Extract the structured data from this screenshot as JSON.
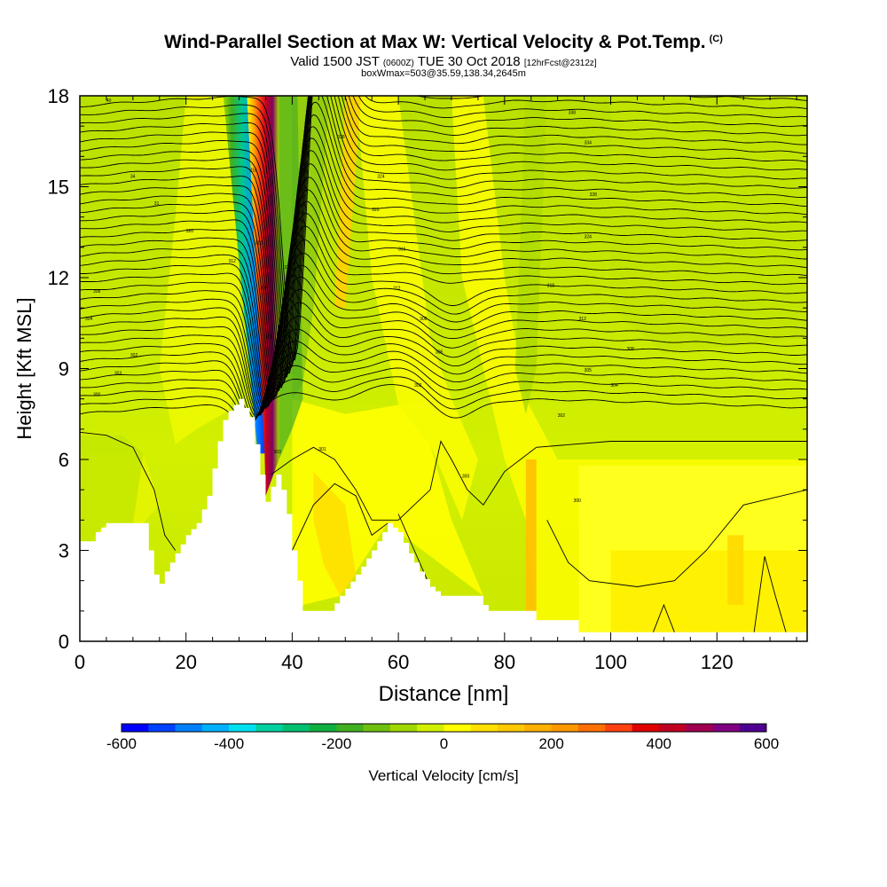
{
  "header": {
    "title": "Wind-Parallel Section at Max W: Vertical Velocity & Pot.Temp.",
    "copyright": "(C)",
    "valid_prefix": "Valid 1500 JST",
    "valid_utc": "(0600Z)",
    "valid_date": "TUE 30 Oct 2018",
    "forecast": "[12hrFcst@2312z]",
    "box_info": "boxWmax=503@35.59,138.34,2645m"
  },
  "chart_data": {
    "type": "heatmap",
    "title": "Wind-Parallel Section at Max W: Vertical Velocity & Pot.Temp.",
    "xlabel": "Distance [nm]",
    "ylabel": "Height [Kft MSL]",
    "xlim": [
      0,
      137
    ],
    "ylim": [
      0,
      18
    ],
    "x_ticks": [
      0,
      20,
      40,
      60,
      80,
      100,
      120
    ],
    "y_ticks": [
      0,
      3,
      6,
      9,
      12,
      15,
      18
    ],
    "colorbar": {
      "label": "Vertical Velocity [cm/s]",
      "ticks": [
        -600,
        -400,
        -200,
        0,
        200,
        400,
        600
      ],
      "colors": [
        "#0000ff",
        "#0040ff",
        "#0080ff",
        "#00b0ff",
        "#00e0f0",
        "#00d0a0",
        "#00c070",
        "#10b040",
        "#40b020",
        "#70c010",
        "#a0d800",
        "#d0f000",
        "#ffff00",
        "#ffe000",
        "#ffc800",
        "#ffb000",
        "#ff9800",
        "#ff7000",
        "#ff4010",
        "#e00000",
        "#c00020",
        "#a00050",
        "#800080",
        "#500090"
      ]
    },
    "terrain_kft": [
      [
        0,
        3.3
      ],
      [
        2,
        3.3
      ],
      [
        3,
        3.6
      ],
      [
        5,
        3.9
      ],
      [
        12,
        3.9
      ],
      [
        13,
        3.0
      ],
      [
        14,
        2.2
      ],
      [
        15,
        1.9
      ],
      [
        16,
        2.3
      ],
      [
        18,
        2.9
      ],
      [
        20,
        3.5
      ],
      [
        22,
        3.9
      ],
      [
        24,
        4.8
      ],
      [
        25,
        5.7
      ],
      [
        26,
        6.6
      ],
      [
        27,
        7.3
      ],
      [
        28,
        7.6
      ],
      [
        30,
        8.0
      ],
      [
        31,
        7.7
      ],
      [
        32,
        7.4
      ],
      [
        33,
        6.5
      ],
      [
        34,
        5.5
      ],
      [
        35,
        4.6
      ],
      [
        36,
        5.1
      ],
      [
        37,
        5.5
      ],
      [
        38,
        5.0
      ],
      [
        39,
        4.2
      ],
      [
        40,
        3.0
      ],
      [
        41,
        2.0
      ],
      [
        42,
        1.0
      ],
      [
        47,
        1.0
      ],
      [
        49,
        1.5
      ],
      [
        52,
        2.2
      ],
      [
        55,
        3.0
      ],
      [
        57,
        3.6
      ],
      [
        58,
        3.9
      ],
      [
        60,
        3.6
      ],
      [
        62,
        2.9
      ],
      [
        64,
        2.3
      ],
      [
        66,
        1.8
      ],
      [
        68,
        1.5
      ],
      [
        75,
        1.5
      ],
      [
        76,
        1.2
      ],
      [
        77,
        1.0
      ],
      [
        85,
        1.0
      ],
      [
        86,
        0.7
      ],
      [
        93,
        0.7
      ],
      [
        94,
        0.3
      ],
      [
        137,
        0.3
      ]
    ],
    "isentrope_labels": [
      {
        "x": 5,
        "y": 17.8,
        "text": "40"
      },
      {
        "x": 9.5,
        "y": 15.3,
        "text": "34"
      },
      {
        "x": 14,
        "y": 14.4,
        "text": "31"
      },
      {
        "x": 20,
        "y": 13.5,
        "text": "320"
      },
      {
        "x": 2.5,
        "y": 11.5,
        "text": "308"
      },
      {
        "x": 1,
        "y": 10.6,
        "text": "304"
      },
      {
        "x": 9.5,
        "y": 9.4,
        "text": "302"
      },
      {
        "x": 6.5,
        "y": 8.8,
        "text": "303"
      },
      {
        "x": 2.5,
        "y": 8.1,
        "text": "300"
      },
      {
        "x": 32,
        "y": 15.5,
        "text": "316"
      },
      {
        "x": 28,
        "y": 12.5,
        "text": "312"
      },
      {
        "x": 33,
        "y": 13.1,
        "text": "310"
      },
      {
        "x": 34,
        "y": 11.6,
        "text": "308"
      },
      {
        "x": 35,
        "y": 10.0,
        "text": "305"
      },
      {
        "x": 38.5,
        "y": 12.3,
        "text": "316"
      },
      {
        "x": 38,
        "y": 11.0,
        "text": "312"
      },
      {
        "x": 37,
        "y": 9.5,
        "text": "308"
      },
      {
        "x": 36.5,
        "y": 6.2,
        "text": "303"
      },
      {
        "x": 48.5,
        "y": 16.6,
        "text": "328"
      },
      {
        "x": 56,
        "y": 15.3,
        "text": "324"
      },
      {
        "x": 55,
        "y": 14.2,
        "text": "320"
      },
      {
        "x": 60,
        "y": 12.9,
        "text": "316"
      },
      {
        "x": 59,
        "y": 11.6,
        "text": "312"
      },
      {
        "x": 64,
        "y": 10.6,
        "text": "308"
      },
      {
        "x": 67,
        "y": 9.5,
        "text": "306"
      },
      {
        "x": 63,
        "y": 8.4,
        "text": "302"
      },
      {
        "x": 72,
        "y": 5.4,
        "text": "300"
      },
      {
        "x": 45,
        "y": 6.3,
        "text": "301"
      },
      {
        "x": 92,
        "y": 17.4,
        "text": "338"
      },
      {
        "x": 95,
        "y": 16.4,
        "text": "334"
      },
      {
        "x": 96,
        "y": 14.7,
        "text": "328"
      },
      {
        "x": 95,
        "y": 13.3,
        "text": "324"
      },
      {
        "x": 88,
        "y": 11.7,
        "text": "318"
      },
      {
        "x": 94,
        "y": 10.6,
        "text": "312"
      },
      {
        "x": 103,
        "y": 9.6,
        "text": "308"
      },
      {
        "x": 95,
        "y": 8.9,
        "text": "305"
      },
      {
        "x": 100,
        "y": 8.4,
        "text": "304"
      },
      {
        "x": 90,
        "y": 7.4,
        "text": "302"
      },
      {
        "x": 93,
        "y": 4.6,
        "text": "300"
      }
    ]
  }
}
